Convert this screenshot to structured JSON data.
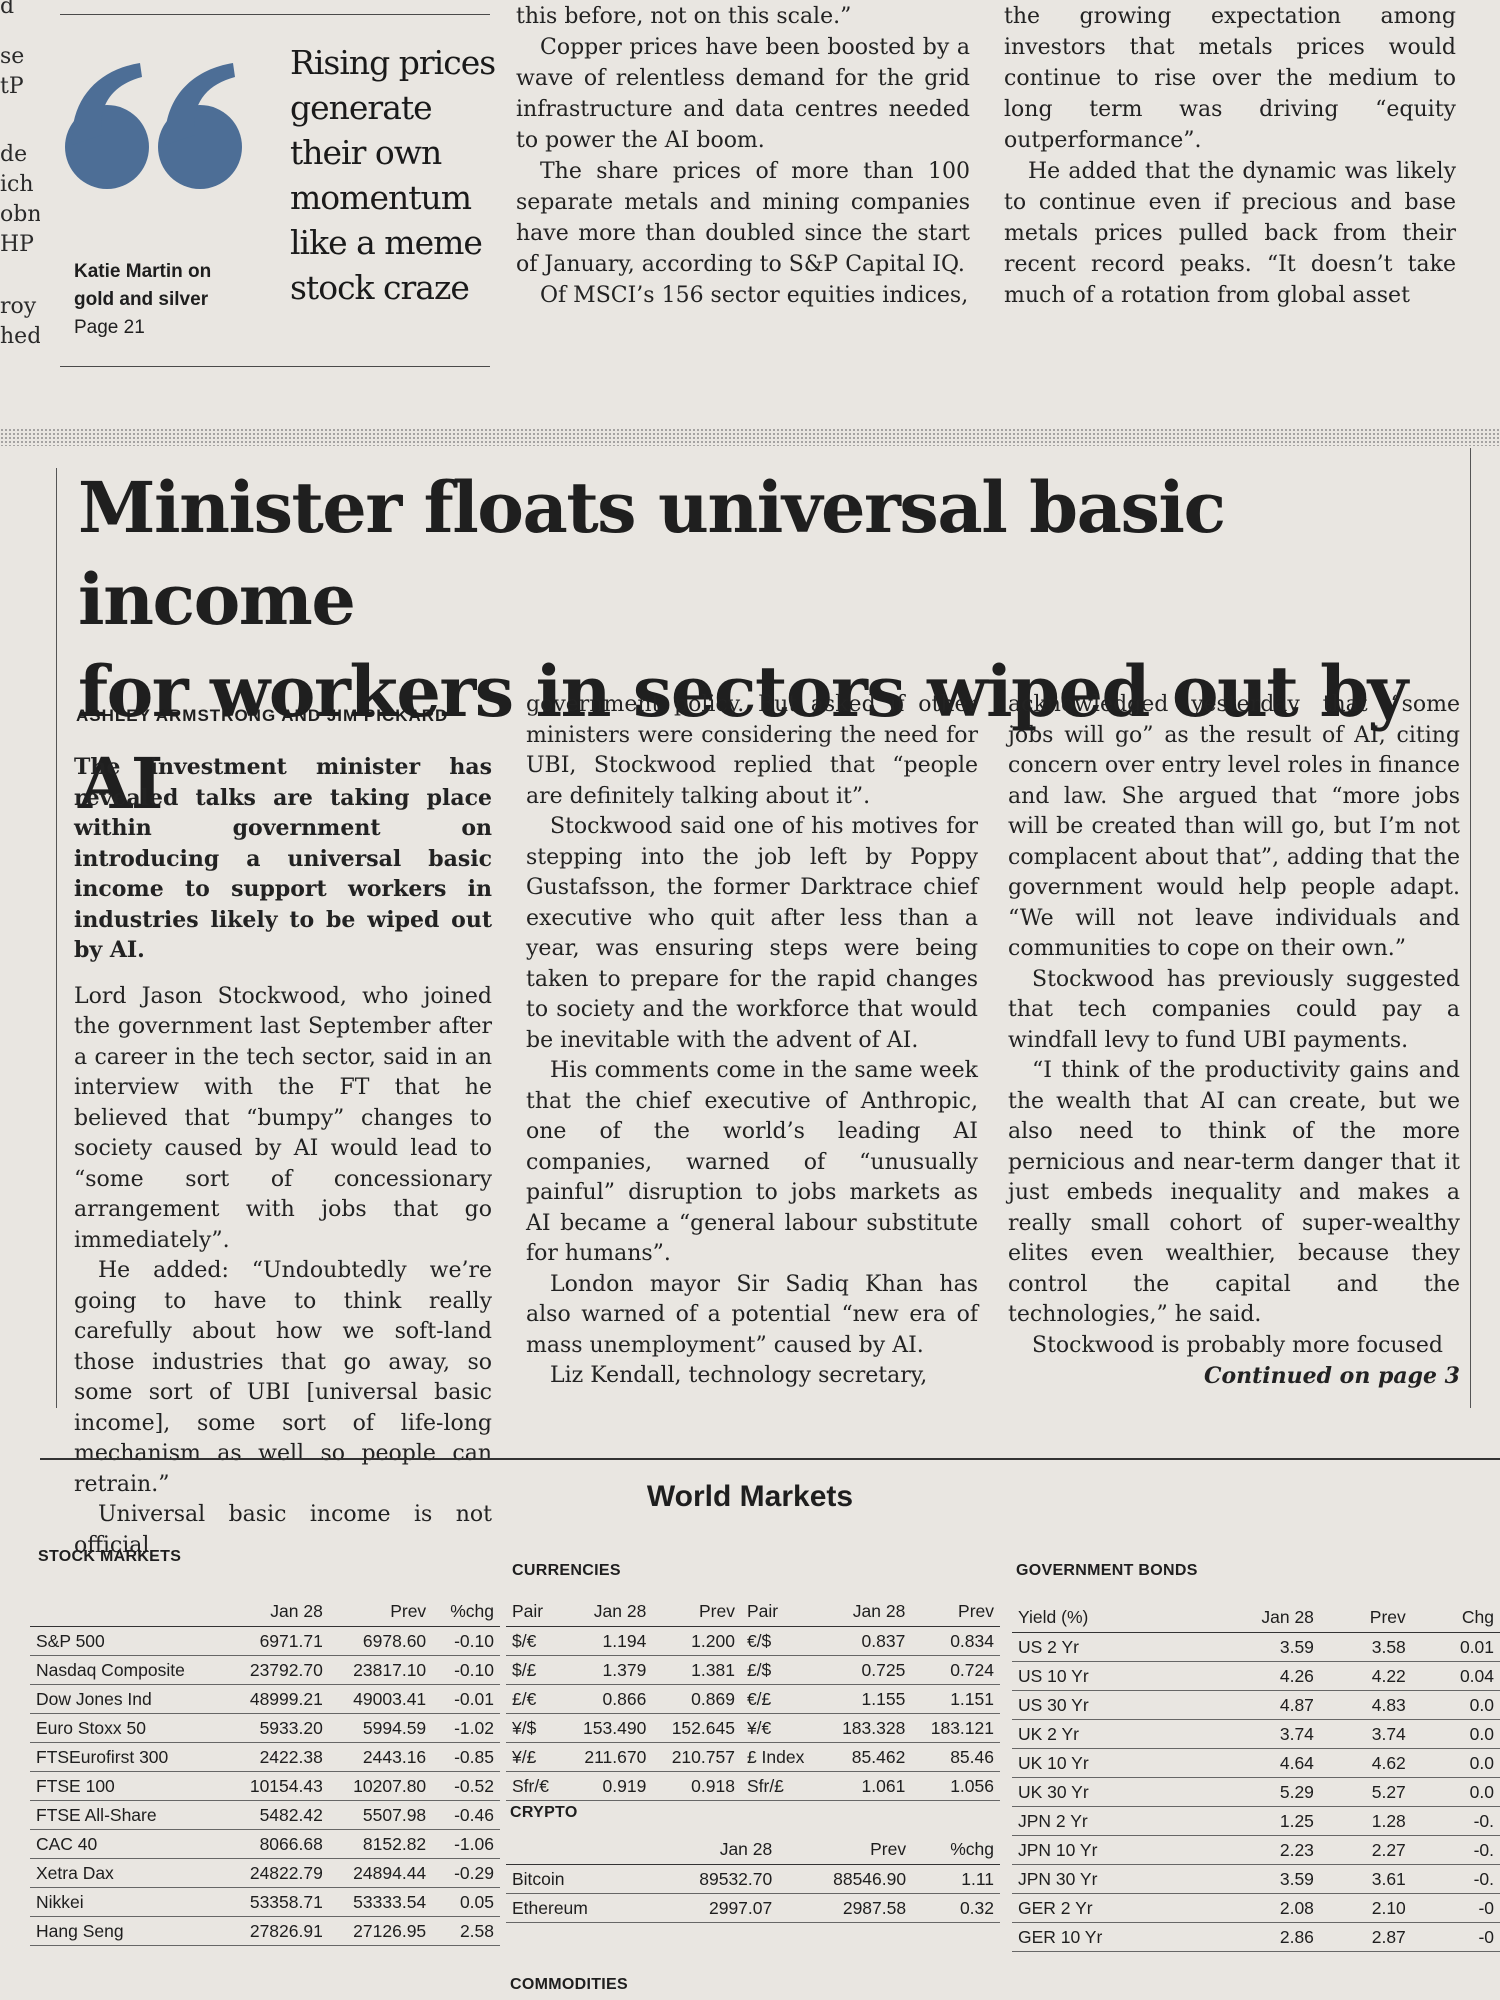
{
  "left_edge": [
    "d",
    "se",
    "tP",
    "de",
    "ich",
    "obn",
    "HP",
    "roy",
    "hed"
  ],
  "pull_quote": {
    "text_lines": [
      "Rising prices",
      "generate",
      "their own",
      "momentum",
      "like a meme",
      "stock craze"
    ],
    "byline_lines": [
      "Katie Martin on",
      "gold and silver",
      "Page 21"
    ],
    "mark_color": "#4d6e96"
  },
  "top_mid_column": {
    "paragraphs": [
      "sure . . . I’ve never seen anything like this before, not on this scale.”",
      "Copper prices have been boosted by a wave of relentless demand for the grid infrastructure and data centres needed to power the AI boom.",
      "The share prices of more than 100 separate metals and mining companies have more than doubled since the start of January, according to S&P Capital IQ.",
      "Of MSCI’s 156 sector equities indices,"
    ]
  },
  "top_right_column": {
    "paragraphs": [
      "officer at Orion Resource Equities, said the growing expectation among investors that metals prices would continue to rise over the medium to long term was driving “equity outperformance”.",
      "He added that the dynamic was likely to continue even if precious and base metals prices pulled back from their recent record peaks. “It doesn’t take much of a rotation from global asset"
    ]
  },
  "article": {
    "headline_lines": [
      "Minister floats universal basic income",
      "for workers in sectors wiped out by AI"
    ],
    "byline": "ASHLEY ARMSTRONG AND JIM PICKARD",
    "standfirst": "The investment minister has revealed talks are taking place within government on introducing a universal basic income to support workers in industries likely to be wiped out by AI.",
    "col1": [
      "Lord Jason Stockwood, who joined the government last September after a career in the tech sector, said in an interview with the FT that he believed that “bumpy” changes to society caused by AI would lead to “some sort of concessionary arrangement with jobs that go immediately”.",
      "He added: “Undoubtedly we’re going to have to think really carefully about how we soft-land those industries that go away, so some sort of UBI [universal basic income], some sort of life-long mechanism as well so people can retrain.”",
      "Universal basic income is not official"
    ],
    "col2": [
      "government policy. But asked if other ministers were considering the need for UBI, Stockwood replied that “people are definitely talking about it”.",
      "Stockwood said one of his motives for stepping into the job left by Poppy Gustafsson, the former Darktrace chief executive who quit after less than a year, was ensuring steps were being taken to prepare for the rapid changes to society and the workforce that would be inevitable with the advent of AI.",
      "His comments come in the same week that the chief executive of Anthropic, one of the world’s leading AI companies, warned of “unusually painful” disruption to jobs markets as AI became a “general labour substitute for humans”.",
      "London mayor Sir Sadiq Khan has also warned of a potential “new era of mass unemployment” caused by AI.",
      "Liz Kendall, technology secretary,"
    ],
    "col3": [
      "acknowledged yesterday that “some jobs will go” as the result of AI, citing concern over entry level roles in finance and law. She argued that “more jobs will be created than will go, but I’m not complacent about that”, adding that the government would help people adapt. “We will not leave individuals and communities to cope on their own.”",
      "Stockwood has previously suggested that tech companies could pay a windfall levy to fund UBI payments.",
      "“I think of the productivity gains and the wealth that AI can create, but we also need to think of the more pernicious and near-term danger that it just embeds inequality and makes a really small cohort of super-wealthy elites even wealthier, because they control the capital and the technologies,” he said.",
      "Stockwood is probably more focused"
    ],
    "continued": "Continued on page 3"
  },
  "markets": {
    "title": "World Markets",
    "stock": {
      "title": "STOCK MARKETS",
      "headers": [
        "",
        "Jan 28",
        "Prev",
        "%chg"
      ],
      "rows": [
        [
          "S&P 500",
          "6971.71",
          "6978.60",
          "-0.10"
        ],
        [
          "Nasdaq Composite",
          "23792.70",
          "23817.10",
          "-0.10"
        ],
        [
          "Dow Jones Ind",
          "48999.21",
          "49003.41",
          "-0.01"
        ],
        [
          "Euro Stoxx 50",
          "5933.20",
          "5994.59",
          "-1.02"
        ],
        [
          "FTSEurofirst 300",
          "2422.38",
          "2443.16",
          "-0.85"
        ],
        [
          "FTSE 100",
          "10154.43",
          "10207.80",
          "-0.52"
        ],
        [
          "FTSE All-Share",
          "5482.42",
          "5507.98",
          "-0.46"
        ],
        [
          "CAC 40",
          "8066.68",
          "8152.82",
          "-1.06"
        ],
        [
          "Xetra Dax",
          "24822.79",
          "24894.44",
          "-0.29"
        ],
        [
          "Nikkei",
          "53358.71",
          "53333.54",
          "0.05"
        ],
        [
          "Hang Seng",
          "27826.91",
          "27126.95",
          "2.58"
        ]
      ]
    },
    "currencies": {
      "title": "CURRENCIES",
      "headers": [
        "Pair",
        "Jan 28",
        "Prev",
        "Pair",
        "Jan 28",
        "Prev"
      ],
      "rows": [
        [
          "$/€",
          "1.194",
          "1.200",
          "€/$",
          "0.837",
          "0.834"
        ],
        [
          "$/£",
          "1.379",
          "1.381",
          "£/$",
          "0.725",
          "0.724"
        ],
        [
          "£/€",
          "0.866",
          "0.869",
          "€/£",
          "1.155",
          "1.151"
        ],
        [
          "¥/$",
          "153.490",
          "152.645",
          "¥/€",
          "183.328",
          "183.121"
        ],
        [
          "¥/£",
          "211.670",
          "210.757",
          "£ Index",
          "85.462",
          "85.46"
        ],
        [
          "Sfr/€",
          "0.919",
          "0.918",
          "Sfr/£",
          "1.061",
          "1.056"
        ]
      ]
    },
    "crypto": {
      "title": "CRYPTO",
      "headers": [
        "",
        "Jan 28",
        "Prev",
        "%chg"
      ],
      "rows": [
        [
          "Bitcoin",
          "89532.70",
          "88546.90",
          "1.11"
        ],
        [
          "Ethereum",
          "2997.07",
          "2987.58",
          "0.32"
        ]
      ]
    },
    "commodities_title": "COMMODITIES",
    "bonds": {
      "title": "GOVERNMENT BONDS",
      "headers": [
        "Yield (%)",
        "Jan 28",
        "Prev",
        "Chg"
      ],
      "rows": [
        [
          "US 2 Yr",
          "3.59",
          "3.58",
          "0.01"
        ],
        [
          "US 10 Yr",
          "4.26",
          "4.22",
          "0.04"
        ],
        [
          "US 30 Yr",
          "4.87",
          "4.83",
          "0.0"
        ],
        [
          "UK 2 Yr",
          "3.74",
          "3.74",
          "0.0"
        ],
        [
          "UK 10 Yr",
          "4.64",
          "4.62",
          "0.0"
        ],
        [
          "UK 30 Yr",
          "5.29",
          "5.27",
          "0.0"
        ],
        [
          "JPN 2 Yr",
          "1.25",
          "1.28",
          "-0."
        ],
        [
          "JPN 10 Yr",
          "2.23",
          "2.27",
          "-0."
        ],
        [
          "JPN 30 Yr",
          "3.59",
          "3.61",
          "-0."
        ],
        [
          "GER 2 Yr",
          "2.08",
          "2.10",
          "-0"
        ],
        [
          "GER 10 Yr",
          "2.86",
          "2.87",
          "-0"
        ]
      ]
    }
  }
}
